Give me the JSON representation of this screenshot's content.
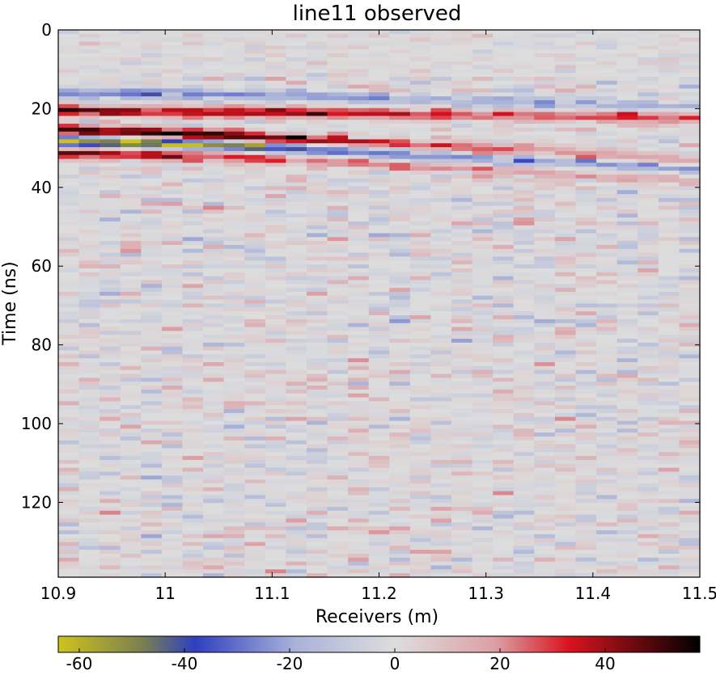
{
  "chart_data": {
    "type": "heatmap",
    "title": "line11 observed",
    "xlabel": "Receivers (m)",
    "ylabel": "Time (ns)",
    "xlim": [
      10.9,
      11.5
    ],
    "ylim": [
      0,
      139
    ],
    "y_inverted": true,
    "x_ticks": [
      "10.9",
      "11",
      "11.1",
      "11.2",
      "11.3",
      "11.4",
      "11.5"
    ],
    "x_tick_values": [
      10.9,
      11.0,
      11.1,
      11.2,
      11.3,
      11.4,
      11.5
    ],
    "y_ticks": [
      "0",
      "20",
      "40",
      "60",
      "80",
      "100",
      "120"
    ],
    "y_tick_values": [
      0,
      20,
      40,
      60,
      80,
      100,
      120
    ],
    "colorbar": {
      "orientation": "horizontal",
      "location": "bottom",
      "range": [
        -64,
        58
      ],
      "ticks": [
        "-60",
        "-40",
        "-20",
        "0",
        "20",
        "40"
      ],
      "tick_values": [
        -60,
        -40,
        -20,
        0,
        20,
        40
      ],
      "colormap_stops": [
        {
          "value": -64,
          "color": "#cfc21d"
        },
        {
          "value": -48,
          "color": "#7a8050"
        },
        {
          "value": -38,
          "color": "#2f3fbf"
        },
        {
          "value": -19,
          "color": "#a9b2d8"
        },
        {
          "value": 0,
          "color": "#dddddd"
        },
        {
          "value": 19,
          "color": "#dca0a6"
        },
        {
          "value": 33,
          "color": "#d9141f"
        },
        {
          "value": 58,
          "color": "#000000"
        }
      ]
    },
    "receivers": {
      "start": 10.9,
      "end": 11.5,
      "count": 31
    },
    "time_samples": {
      "start": 0,
      "end": 139,
      "count": 140
    },
    "reflection_events": [
      {
        "name": "",
        "x": [
          10.9,
          11.05,
          11.2,
          11.35,
          11.5
        ],
        "y": [
          15.5,
          16,
          17,
          18,
          19
        ],
        "amplitude": [
          -28,
          -25,
          -22,
          -20,
          -18
        ]
      },
      {
        "name": "",
        "x": [
          10.9,
          11.05,
          11.2,
          11.35,
          11.5
        ],
        "y": [
          20,
          20.5,
          21,
          21.5,
          22
        ],
        "amplitude": [
          44,
          40,
          35,
          30,
          28
        ]
      },
      {
        "name": "",
        "x": [
          10.9,
          11.05,
          11.2,
          11.35,
          11.5
        ],
        "y": [
          25,
          26.5,
          28.5,
          30.5,
          33
        ],
        "amplitude": [
          52,
          55,
          35,
          24,
          20
        ]
      },
      {
        "name": "",
        "x": [
          10.9,
          11.05,
          11.2,
          11.35,
          11.5
        ],
        "y": [
          28,
          29,
          31,
          33,
          35
        ],
        "amplitude": [
          -62,
          -52,
          -30,
          -22,
          -24
        ]
      },
      {
        "name": "",
        "x": [
          10.9,
          11.05,
          11.2,
          11.35,
          11.5
        ],
        "y": [
          31,
          32,
          34,
          36,
          38
        ],
        "amplitude": [
          45,
          35,
          20,
          16,
          14
        ]
      }
    ],
    "noise_level": 14,
    "legend": "none",
    "grid": false
  }
}
